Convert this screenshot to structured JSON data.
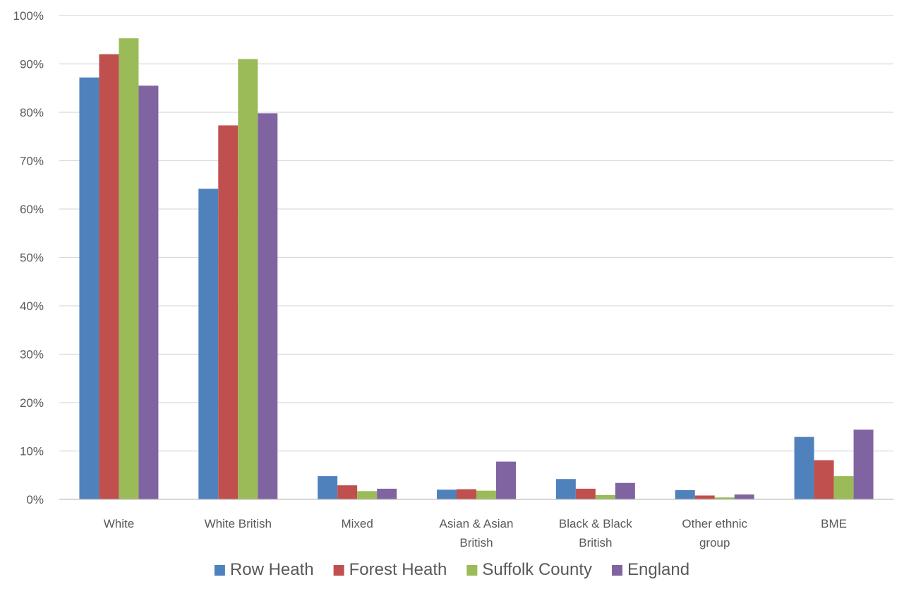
{
  "chart_data": {
    "type": "bar",
    "title": "",
    "xlabel": "",
    "ylabel": "",
    "categories": [
      [
        "White"
      ],
      [
        "White British"
      ],
      [
        "Mixed"
      ],
      [
        "Asian & Asian",
        "British"
      ],
      [
        "Black & Black",
        "British"
      ],
      [
        "Other ethnic",
        "group"
      ],
      [
        "BME"
      ]
    ],
    "series": [
      {
        "name": "Row Heath",
        "color": "#4F81BD",
        "values": [
          87.2,
          64.2,
          4.8,
          2.0,
          4.2,
          1.9,
          12.9
        ]
      },
      {
        "name": "Forest Heath",
        "color": "#C0504D",
        "values": [
          92.0,
          77.3,
          2.9,
          2.1,
          2.2,
          0.8,
          8.1
        ]
      },
      {
        "name": "Suffolk County",
        "color": "#9BBB59",
        "values": [
          95.3,
          91.0,
          1.7,
          1.8,
          0.9,
          0.4,
          4.8
        ]
      },
      {
        "name": "England",
        "color": "#8064A2",
        "values": [
          85.5,
          79.8,
          2.2,
          7.8,
          3.4,
          1.0,
          14.4
        ]
      }
    ],
    "ylim": [
      0,
      100
    ],
    "yticks": [
      0,
      10,
      20,
      30,
      40,
      50,
      60,
      70,
      80,
      90,
      100
    ],
    "ytick_suffix": "%",
    "grid": true,
    "legend_position": "bottom"
  }
}
